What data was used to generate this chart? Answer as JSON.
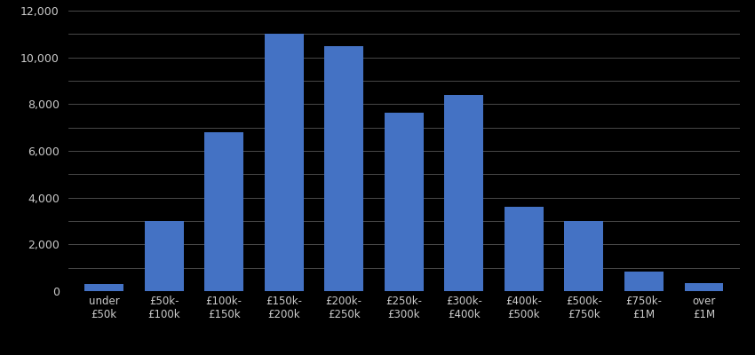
{
  "categories": [
    "under\n£50k",
    "£50k-\n£100k",
    "£100k-\n£150k",
    "£150k-\n£200k",
    "£200k-\n£250k",
    "£250k-\n£300k",
    "£300k-\n£400k",
    "£400k-\n£500k",
    "£500k-\n£750k",
    "£750k-\n£1M",
    "over\n£1M"
  ],
  "values": [
    300,
    3000,
    6800,
    11000,
    10500,
    7650,
    8400,
    3600,
    3000,
    850,
    350
  ],
  "bar_color": "#4472C4",
  "background_color": "#000000",
  "text_color": "#cccccc",
  "grid_color": "#555555",
  "major_yticks": [
    0,
    2000,
    4000,
    6000,
    8000,
    10000,
    12000
  ],
  "minor_yticks": [
    1000,
    3000,
    5000,
    7000,
    9000,
    11000
  ],
  "ylim": [
    0,
    12000
  ],
  "figsize": [
    8.5,
    4.0
  ],
  "dpi": 100
}
